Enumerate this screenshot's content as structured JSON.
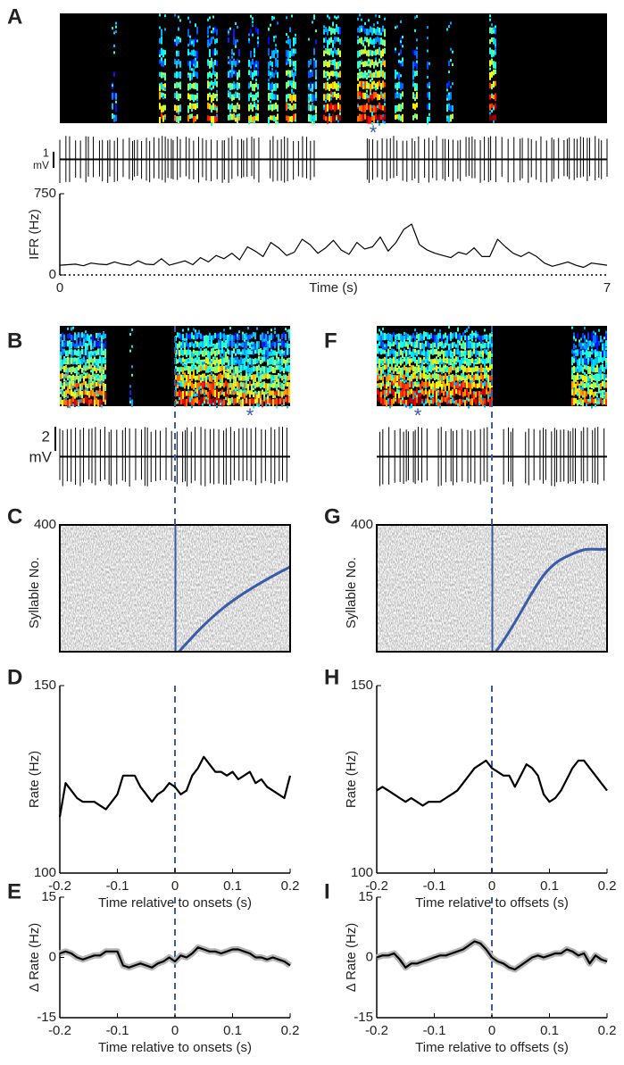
{
  "chart_data": [
    {
      "type": "line",
      "panel": "A",
      "ylabel": "IFR (Hz)",
      "xlabel": "Time (s)",
      "color": "#000000",
      "marker": "*",
      "scale_bar": {
        "value": 1,
        "unit": "mV"
      },
      "xlim": [
        0,
        7
      ],
      "xticks": [
        0,
        7
      ],
      "ylim": [
        0,
        750
      ],
      "yticks": [
        0,
        750
      ],
      "x": [
        0,
        0.1,
        0.2,
        0.3,
        0.4,
        0.5,
        0.6,
        0.7,
        0.8,
        0.9,
        1,
        1.1,
        1.2,
        1.3,
        1.4,
        1.5,
        1.6,
        1.7,
        1.8,
        1.9,
        2,
        2.1,
        2.2,
        2.3,
        2.4,
        2.5,
        2.6,
        2.7,
        2.8,
        2.9,
        3,
        3.1,
        3.2,
        3.3,
        3.4,
        3.5,
        3.6,
        3.7,
        3.8,
        3.9,
        4,
        4.1,
        4.2,
        4.3,
        4.4,
        4.5,
        4.6,
        4.7,
        4.8,
        4.9,
        5,
        5.1,
        5.2,
        5.3,
        5.4,
        5.5,
        5.6,
        5.7,
        5.8,
        5.9,
        6,
        6.1,
        6.2,
        6.3,
        6.4,
        6.5,
        6.6,
        6.7,
        6.8,
        6.9,
        7
      ],
      "values": [
        90,
        95,
        100,
        85,
        110,
        100,
        95,
        120,
        100,
        90,
        130,
        100,
        95,
        150,
        90,
        110,
        130,
        95,
        160,
        120,
        180,
        150,
        200,
        140,
        260,
        220,
        170,
        300,
        250,
        180,
        210,
        330,
        280,
        200,
        250,
        320,
        230,
        190,
        300,
        240,
        260,
        350,
        220,
        300,
        420,
        470,
        280,
        230,
        200,
        180,
        160,
        210,
        190,
        250,
        170,
        170,
        330,
        260,
        200,
        170,
        210,
        170,
        110,
        80,
        100,
        120,
        90,
        70,
        110,
        100,
        90
      ]
    },
    {
      "type": "spectrogram",
      "panel": "B",
      "marker": "*",
      "scale_bar": {
        "value": 2,
        "unit": "mV"
      }
    },
    {
      "type": "spectrogram",
      "panel": "F",
      "marker": "*"
    },
    {
      "type": "raster",
      "panel": "C",
      "ylabel": "Syllable No.",
      "ylim": [
        0,
        400
      ],
      "yticks": [
        400
      ]
    },
    {
      "type": "raster",
      "panel": "G",
      "ylabel": "Syllable No.",
      "ylim": [
        0,
        400
      ],
      "yticks": [
        400
      ]
    },
    {
      "type": "line",
      "panel": "D",
      "ylabel": "Rate (Hz)",
      "xlabel": "Time relative to onsets (s)",
      "color": "#000000",
      "xlim": [
        -0.2,
        0.2
      ],
      "xticks": [
        -0.2,
        -0.1,
        0,
        0.1,
        0.2
      ],
      "ylim": [
        100,
        150
      ],
      "yticks": [
        100,
        150
      ],
      "x": [
        -0.2,
        -0.19,
        -0.18,
        -0.17,
        -0.16,
        -0.15,
        -0.14,
        -0.13,
        -0.12,
        -0.11,
        -0.1,
        -0.09,
        -0.08,
        -0.07,
        -0.06,
        -0.05,
        -0.04,
        -0.03,
        -0.02,
        -0.01,
        0,
        0.01,
        0.02,
        0.03,
        0.04,
        0.05,
        0.06,
        0.07,
        0.08,
        0.09,
        0.1,
        0.11,
        0.12,
        0.13,
        0.14,
        0.15,
        0.16,
        0.17,
        0.18,
        0.19,
        0.2
      ],
      "values": [
        115,
        124,
        122,
        120,
        119,
        119,
        119,
        118,
        117,
        119,
        121,
        126,
        126,
        126,
        123,
        121,
        119,
        121,
        122,
        124,
        123,
        121,
        122,
        126,
        128,
        131,
        129,
        127,
        127,
        126,
        127,
        125,
        126,
        127,
        124,
        125,
        123,
        122,
        121,
        120,
        126
      ]
    },
    {
      "type": "line",
      "panel": "H",
      "ylabel": "Rate (Hz)",
      "xlabel": "Time relative to offsets (s)",
      "color": "#000000",
      "xlim": [
        -0.2,
        0.2
      ],
      "xticks": [
        -0.2,
        -0.1,
        0,
        0.1,
        0.2
      ],
      "ylim": [
        100,
        150
      ],
      "yticks": [
        100,
        150
      ],
      "x": [
        -0.2,
        -0.19,
        -0.18,
        -0.17,
        -0.16,
        -0.15,
        -0.14,
        -0.13,
        -0.12,
        -0.11,
        -0.1,
        -0.09,
        -0.08,
        -0.07,
        -0.06,
        -0.05,
        -0.04,
        -0.03,
        -0.02,
        -0.01,
        0,
        0.01,
        0.02,
        0.03,
        0.04,
        0.05,
        0.06,
        0.07,
        0.08,
        0.09,
        0.1,
        0.11,
        0.12,
        0.13,
        0.14,
        0.15,
        0.16,
        0.17,
        0.18,
        0.19,
        0.2
      ],
      "values": [
        122,
        123,
        122,
        121,
        120,
        119,
        120,
        119,
        118,
        119,
        119,
        119,
        120,
        121,
        122,
        124,
        126,
        128,
        129,
        130,
        128,
        127,
        126,
        126,
        123,
        126,
        129,
        128,
        126,
        121,
        119,
        120,
        122,
        125,
        128,
        130,
        130,
        128,
        126,
        124,
        122
      ]
    },
    {
      "type": "line",
      "panel": "E",
      "ylabel": "Δ Rate (Hz)",
      "xlabel": "Time relative to onsets (s)",
      "color": "#000000",
      "band": true,
      "xlim": [
        -0.2,
        0.2
      ],
      "xticks": [
        -0.2,
        -0.1,
        0,
        0.1,
        0.2
      ],
      "ylim": [
        -15,
        15
      ],
      "yticks": [
        -15,
        0,
        15
      ],
      "x": [
        -0.2,
        -0.19,
        -0.18,
        -0.17,
        -0.16,
        -0.15,
        -0.14,
        -0.13,
        -0.12,
        -0.11,
        -0.1,
        -0.09,
        -0.08,
        -0.07,
        -0.06,
        -0.05,
        -0.04,
        -0.03,
        -0.02,
        -0.01,
        0,
        0.01,
        0.02,
        0.03,
        0.04,
        0.05,
        0.06,
        0.07,
        0.08,
        0.09,
        0.1,
        0.11,
        0.12,
        0.13,
        0.14,
        0.15,
        0.16,
        0.17,
        0.18,
        0.19,
        0.2
      ],
      "values": [
        1,
        1.5,
        1,
        0,
        -0.5,
        0,
        0.5,
        0.5,
        1.5,
        1.5,
        1.5,
        -2,
        -2.5,
        -2,
        -1.5,
        -2,
        -2.5,
        -1.5,
        -1,
        0,
        -1,
        0.5,
        0,
        1,
        2.5,
        2,
        1.5,
        1.5,
        1,
        1.5,
        2,
        2,
        1.5,
        1,
        0,
        0,
        -0.5,
        0,
        -0.5,
        -1,
        -2
      ]
    },
    {
      "type": "line",
      "panel": "I",
      "ylabel": "Δ Rate (Hz)",
      "xlabel": "Time relative to offsets (s)",
      "color": "#000000",
      "band": true,
      "xlim": [
        -0.2,
        0.2
      ],
      "xticks": [
        -0.2,
        -0.1,
        0,
        0.1,
        0.2
      ],
      "ylim": [
        -15,
        15
      ],
      "yticks": [
        -15,
        0,
        15
      ],
      "x": [
        -0.2,
        -0.19,
        -0.18,
        -0.17,
        -0.16,
        -0.15,
        -0.14,
        -0.13,
        -0.12,
        -0.11,
        -0.1,
        -0.09,
        -0.08,
        -0.07,
        -0.06,
        -0.05,
        -0.04,
        -0.03,
        -0.02,
        -0.01,
        0,
        0.01,
        0.02,
        0.03,
        0.04,
        0.05,
        0.06,
        0.07,
        0.08,
        0.09,
        0.1,
        0.11,
        0.12,
        0.13,
        0.14,
        0.15,
        0.16,
        0.17,
        0.18,
        0.19,
        0.2
      ],
      "values": [
        0,
        0.5,
        0.5,
        1,
        -0.5,
        -2.5,
        -1.5,
        -1.5,
        -1,
        -0.5,
        0,
        0.5,
        0.5,
        1,
        1.5,
        2,
        3,
        4,
        3.5,
        2,
        0,
        -1,
        -1.5,
        -2.5,
        -3,
        -2,
        -1,
        0,
        0.5,
        0,
        0.5,
        1,
        1,
        2,
        1.5,
        0.5,
        1,
        -1.5,
        0.5,
        -0.5,
        -1
      ]
    }
  ]
}
